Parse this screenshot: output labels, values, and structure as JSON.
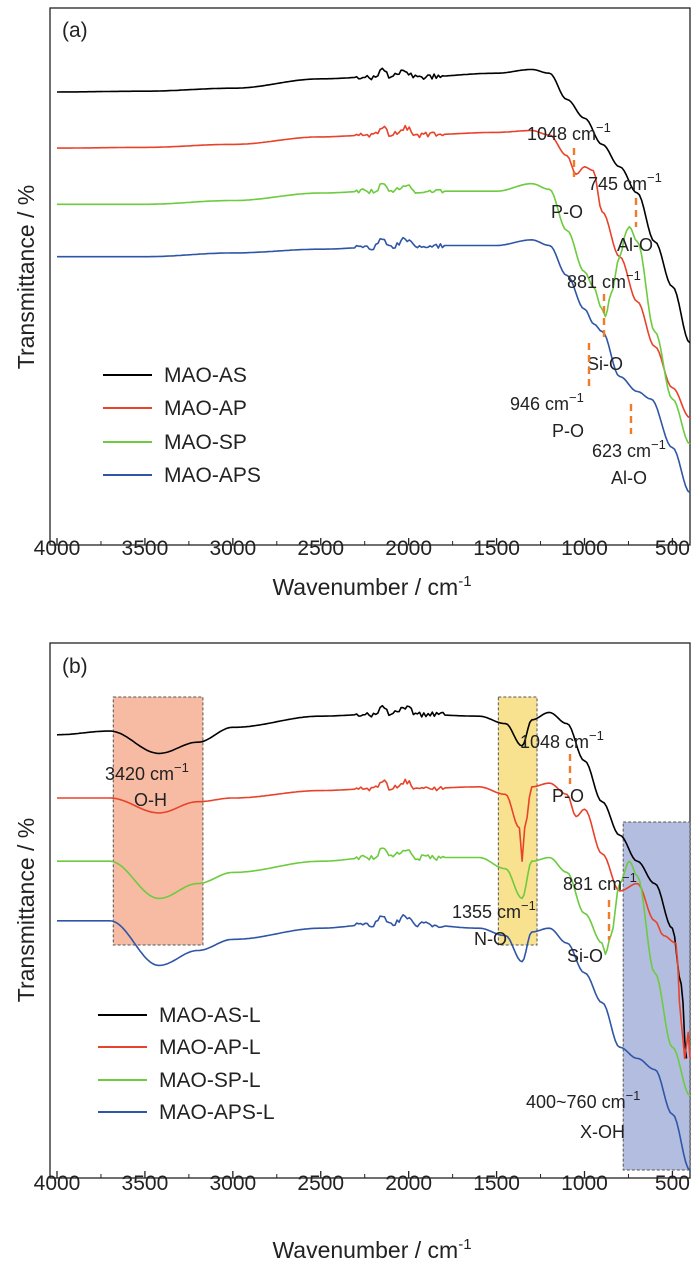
{
  "chart_data": [
    {
      "panel_label": "(a)",
      "type": "line",
      "xlabel": "Wavenumber / cm",
      "xlabel_sup": "-1",
      "ylabel": "Transmittance / %",
      "xlim": [
        4000,
        400
      ],
      "xticks": [
        "4000",
        "3500",
        "3000",
        "2500",
        "2000",
        "1500",
        "1000",
        "500"
      ],
      "series": [
        {
          "name": "MAO-AS",
          "color": "#000000",
          "values": [
            [
              4000,
              8
            ],
            [
              3500,
              7.8
            ],
            [
              3000,
              7
            ],
            [
              2500,
              4.5
            ],
            [
              2200,
              4
            ],
            [
              2150,
              2
            ],
            [
              2100,
              4
            ],
            [
              2020,
              2
            ],
            [
              2000,
              3
            ],
            [
              1950,
              4
            ],
            [
              1500,
              3
            ],
            [
              1300,
              2
            ],
            [
              1200,
              3
            ],
            [
              1100,
              10
            ],
            [
              1000,
              15
            ],
            [
              900,
              22
            ],
            [
              800,
              28
            ],
            [
              700,
              35
            ],
            [
              600,
              48
            ],
            [
              500,
              60
            ],
            [
              400,
              75
            ]
          ]
        },
        {
          "name": "MAO-AP",
          "color": "#e8432a",
          "values": [
            [
              4000,
              23
            ],
            [
              3500,
              22.8
            ],
            [
              3000,
              22
            ],
            [
              2500,
              20
            ],
            [
              2200,
              19.5
            ],
            [
              2150,
              17.5
            ],
            [
              2100,
              19.5
            ],
            [
              2020,
              17.5
            ],
            [
              1950,
              19.5
            ],
            [
              1500,
              18.8
            ],
            [
              1300,
              18.3
            ],
            [
              1200,
              19.5
            ],
            [
              1100,
              25
            ],
            [
              1048,
              30
            ],
            [
              1000,
              28
            ],
            [
              950,
              29
            ],
            [
              900,
              40
            ],
            [
              800,
              52
            ],
            [
              700,
              64
            ],
            [
              600,
              76
            ],
            [
              500,
              87
            ],
            [
              400,
              95
            ]
          ]
        },
        {
          "name": "MAO-SP",
          "color": "#6ccb3e",
          "values": [
            [
              4000,
              38
            ],
            [
              3500,
              38
            ],
            [
              3000,
              37
            ],
            [
              2500,
              35
            ],
            [
              2200,
              34.5
            ],
            [
              2150,
              33
            ],
            [
              2100,
              35
            ],
            [
              2020,
              33
            ],
            [
              1950,
              34.5
            ],
            [
              1500,
              34.5
            ],
            [
              1300,
              32.5
            ],
            [
              1200,
              34
            ],
            [
              1100,
              45
            ],
            [
              1000,
              56
            ],
            [
              950,
              60
            ],
            [
              900,
              66
            ],
            [
              881,
              68
            ],
            [
              850,
              62
            ],
            [
              800,
              52
            ],
            [
              760,
              45
            ],
            [
              745,
              44
            ],
            [
              700,
              48
            ],
            [
              600,
              72
            ],
            [
              500,
              90
            ],
            [
              400,
              102
            ]
          ]
        },
        {
          "name": "MAO-APS",
          "color": "#2f56a6",
          "values": [
            [
              4000,
              52
            ],
            [
              3500,
              52
            ],
            [
              3000,
              51
            ],
            [
              2500,
              50
            ],
            [
              2200,
              49.5
            ],
            [
              2150,
              47.5
            ],
            [
              2100,
              49.5
            ],
            [
              2020,
              47.5
            ],
            [
              1950,
              49
            ],
            [
              1500,
              49
            ],
            [
              1300,
              47.5
            ],
            [
              1200,
              49
            ],
            [
              1100,
              57
            ],
            [
              1000,
              66
            ],
            [
              946,
              70
            ],
            [
              900,
              72
            ],
            [
              800,
              84
            ],
            [
              700,
              88
            ],
            [
              623,
              90
            ],
            [
              500,
              103
            ],
            [
              400,
              115
            ]
          ]
        }
      ],
      "annotations": [
        {
          "wavenumber": 1048,
          "value": "1048 cm",
          "sup": "−1",
          "label": "P-O"
        },
        {
          "wavenumber": 745,
          "value": "745 cm",
          "sup": "−1",
          "label": "Al-O"
        },
        {
          "wavenumber": 881,
          "value": "881 cm",
          "sup": "−1",
          "label": "Si-O"
        },
        {
          "wavenumber": 946,
          "value": "946 cm",
          "sup": "−1",
          "label": "P-O"
        },
        {
          "wavenumber": 623,
          "value": "623 cm",
          "sup": "−1",
          "label": "Al-O"
        }
      ]
    },
    {
      "panel_label": "(b)",
      "type": "line",
      "xlabel": "Wavenumber / cm",
      "xlabel_sup": "-1",
      "ylabel": "Transmittance / %",
      "xlim": [
        4000,
        400
      ],
      "xticks": [
        "4000",
        "3500",
        "3000",
        "2500",
        "2000",
        "1500",
        "1000",
        "500"
      ],
      "series": [
        {
          "name": "MAO-AS-L",
          "color": "#000000",
          "values": [
            [
              4000,
              8
            ],
            [
              3700,
              7
            ],
            [
              3420,
              13
            ],
            [
              3200,
              10
            ],
            [
              3000,
              6
            ],
            [
              2500,
              3
            ],
            [
              2200,
              2.5
            ],
            [
              2150,
              0.5
            ],
            [
              2100,
              2.5
            ],
            [
              2020,
              0.5
            ],
            [
              1950,
              2.5
            ],
            [
              1600,
              3
            ],
            [
              1450,
              5
            ],
            [
              1355,
              11
            ],
            [
              1300,
              4
            ],
            [
              1200,
              2
            ],
            [
              1100,
              5
            ],
            [
              1000,
              15
            ],
            [
              900,
              26
            ],
            [
              800,
              35
            ],
            [
              700,
              42
            ],
            [
              600,
              48
            ],
            [
              500,
              60
            ],
            [
              450,
              75
            ],
            [
              420,
              95
            ]
          ]
        },
        {
          "name": "MAO-AP-L",
          "color": "#e8432a",
          "values": [
            [
              4000,
              25
            ],
            [
              3700,
              25
            ],
            [
              3420,
              29
            ],
            [
              3200,
              26
            ],
            [
              3000,
              25
            ],
            [
              2500,
              23
            ],
            [
              2200,
              22.5
            ],
            [
              2150,
              20.5
            ],
            [
              2100,
              22.5
            ],
            [
              2020,
              20.5
            ],
            [
              1950,
              22.5
            ],
            [
              1600,
              22
            ],
            [
              1450,
              24
            ],
            [
              1370,
              33
            ],
            [
              1355,
              42
            ],
            [
              1340,
              33
            ],
            [
              1300,
              22
            ],
            [
              1200,
              21
            ],
            [
              1100,
              24
            ],
            [
              1048,
              30
            ],
            [
              1000,
              28
            ],
            [
              900,
              40
            ],
            [
              800,
              50
            ],
            [
              700,
              48
            ],
            [
              600,
              58
            ],
            [
              550,
              62
            ],
            [
              480,
              64
            ],
            [
              450,
              85
            ],
            [
              430,
              95
            ],
            [
              410,
              88
            ],
            [
              400,
              95
            ]
          ]
        },
        {
          "name": "MAO-SP-L",
          "color": "#6ccb3e",
          "values": [
            [
              4000,
              42
            ],
            [
              3700,
              42
            ],
            [
              3420,
              52
            ],
            [
              3200,
              48
            ],
            [
              3000,
              45
            ],
            [
              2500,
              42
            ],
            [
              2200,
              41
            ],
            [
              2150,
              39
            ],
            [
              2100,
              41
            ],
            [
              2020,
              39
            ],
            [
              1950,
              41
            ],
            [
              1600,
              41
            ],
            [
              1450,
              44
            ],
            [
              1355,
              52
            ],
            [
              1300,
              42
            ],
            [
              1200,
              41
            ],
            [
              1100,
              45
            ],
            [
              1000,
              56
            ],
            [
              900,
              64
            ],
            [
              881,
              67
            ],
            [
              850,
              62
            ],
            [
              800,
              48
            ],
            [
              745,
              42
            ],
            [
              700,
              46
            ],
            [
              600,
              72
            ],
            [
              500,
              92
            ],
            [
              400,
              105
            ]
          ]
        },
        {
          "name": "MAO-APS-L",
          "color": "#2f56a6",
          "values": [
            [
              4000,
              58
            ],
            [
              3700,
              58
            ],
            [
              3420,
              70
            ],
            [
              3200,
              66
            ],
            [
              3000,
              63
            ],
            [
              2500,
              60
            ],
            [
              2200,
              59
            ],
            [
              2150,
              57
            ],
            [
              2100,
              59
            ],
            [
              2020,
              57
            ],
            [
              1950,
              59
            ],
            [
              1600,
              60
            ],
            [
              1450,
              62
            ],
            [
              1355,
              69
            ],
            [
              1300,
              61
            ],
            [
              1200,
              60
            ],
            [
              1100,
              64
            ],
            [
              1000,
              72
            ],
            [
              900,
              80
            ],
            [
              800,
              92
            ],
            [
              700,
              95
            ],
            [
              600,
              98
            ],
            [
              500,
              110
            ],
            [
              400,
              125
            ]
          ]
        }
      ],
      "annotations": [
        {
          "wavenumber": 3420,
          "value": "3420 cm",
          "sup": "−1",
          "label": "O-H"
        },
        {
          "wavenumber": 1048,
          "value": "1048 cm",
          "sup": "−1",
          "label": "P-O"
        },
        {
          "wavenumber": 1355,
          "value": "1355 cm",
          "sup": "−1",
          "label": "N-O"
        },
        {
          "wavenumber": 881,
          "value": "881 cm",
          "sup": "−1",
          "label": "Si-O"
        },
        {
          "wavenumber": "400~760",
          "value": "400~760 cm",
          "sup": "−1",
          "label": "X-OH"
        }
      ],
      "highlight_regions": [
        {
          "from": 3680,
          "to": 3170,
          "color": "#f4a484"
        },
        {
          "from": 1490,
          "to": 1270,
          "color": "#f7d86a"
        },
        {
          "from": 780,
          "to": 400,
          "color": "#9aa7d6"
        }
      ]
    }
  ]
}
